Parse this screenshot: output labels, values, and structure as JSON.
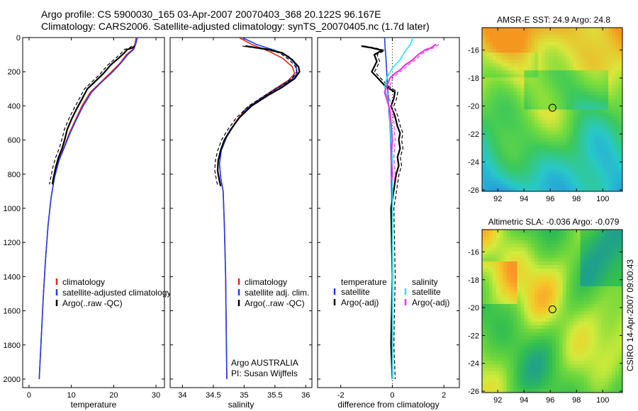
{
  "header": {
    "line1": "Argo profile: CS 5900030_165 03-Apr-2007 20070403_368 20.122S 96.167E",
    "line2": "Climatology: CARS2006. Satellite-adjusted climatology: synTS_20070405.nc (1.7d later)"
  },
  "colors": {
    "climatology": "#e8261c",
    "satellite": "#1f3ee8",
    "argo": "#000000",
    "sal_satellite": "#22e6ee",
    "sal_argo": "#e63bd8"
  },
  "chart_data": [
    {
      "type": "line",
      "xlabel": "temperature",
      "ylabel": "",
      "xlim": [
        -1.5,
        32
      ],
      "ylim": [
        2050,
        0
      ],
      "xticks": [
        0,
        10,
        20,
        30
      ],
      "yticks": [
        0,
        200,
        400,
        600,
        800,
        1000,
        1200,
        1400,
        1600,
        1800,
        2000
      ],
      "legend": [
        "climatology",
        "satellite-adjusted climatology",
        "Argo(..raw -QC)"
      ],
      "series": [
        {
          "name": "climatology",
          "color": "climatology",
          "points": [
            [
              25.3,
              0
            ],
            [
              25.0,
              40
            ],
            [
              24.5,
              70
            ],
            [
              23.0,
              100
            ],
            [
              21.5,
              150
            ],
            [
              19.5,
              200
            ],
            [
              17.0,
              260
            ],
            [
              14.5,
              320
            ],
            [
              12.5,
              400
            ],
            [
              11.0,
              480
            ],
            [
              9.5,
              560
            ],
            [
              8.3,
              640
            ],
            [
              7.0,
              720
            ],
            [
              6.0,
              820
            ],
            [
              5.2,
              940
            ],
            [
              4.5,
              1100
            ],
            [
              3.9,
              1300
            ],
            [
              3.4,
              1500
            ],
            [
              3.0,
              1700
            ],
            [
              2.6,
              1900
            ],
            [
              2.4,
              2000
            ]
          ]
        },
        {
          "name": "satellite-adjusted climatology",
          "color": "satellite",
          "points": [
            [
              25.6,
              0
            ],
            [
              25.2,
              40
            ],
            [
              24.7,
              70
            ],
            [
              23.3,
              100
            ],
            [
              21.7,
              150
            ],
            [
              19.8,
              200
            ],
            [
              17.2,
              260
            ],
            [
              14.8,
              320
            ],
            [
              12.8,
              400
            ],
            [
              11.2,
              480
            ],
            [
              9.7,
              560
            ],
            [
              8.4,
              640
            ],
            [
              7.1,
              720
            ],
            [
              6.0,
              820
            ],
            [
              5.2,
              940
            ],
            [
              4.5,
              1100
            ],
            [
              3.9,
              1300
            ],
            [
              3.4,
              1500
            ],
            [
              3.0,
              1700
            ],
            [
              2.6,
              1900
            ],
            [
              2.4,
              2000
            ]
          ]
        },
        {
          "name": "Argo(..raw -QC)",
          "color": "argo",
          "points": [
            [
              25.0,
              50
            ],
            [
              24.4,
              60
            ],
            [
              23.2,
              70
            ],
            [
              22.5,
              90
            ],
            [
              21.2,
              120
            ],
            [
              19.3,
              160
            ],
            [
              17.6,
              210
            ],
            [
              15.5,
              260
            ],
            [
              13.8,
              300
            ],
            [
              12.5,
              360
            ],
            [
              11.2,
              420
            ],
            [
              10.0,
              480
            ],
            [
              9.0,
              540
            ],
            [
              8.4,
              600
            ],
            [
              7.8,
              650
            ],
            [
              7.0,
              700
            ],
            [
              6.3,
              760
            ],
            [
              5.8,
              820
            ],
            [
              5.5,
              860
            ]
          ]
        }
      ]
    },
    {
      "type": "line",
      "xlabel": "salinity",
      "ylabel": "",
      "xlim": [
        33.8,
        36.1
      ],
      "ylim": [
        2050,
        0
      ],
      "xticks": [
        34,
        34.5,
        35,
        35.5,
        36
      ],
      "yticks": [
        0,
        200,
        400,
        600,
        800,
        1000,
        1200,
        1400,
        1600,
        1800,
        2000
      ],
      "legend": [
        "climatology",
        "satellite adj. clim.",
        "Argo(..raw -QC)"
      ],
      "annotations": [
        "Argo AUSTRALIA",
        "PI: Susan Wijffels"
      ],
      "series": [
        {
          "name": "climatology",
          "color": "climatology",
          "points": [
            [
              34.92,
              0
            ],
            [
              35.12,
              40
            ],
            [
              35.4,
              80
            ],
            [
              35.62,
              120
            ],
            [
              35.78,
              170
            ],
            [
              35.82,
              210
            ],
            [
              35.72,
              250
            ],
            [
              35.5,
              300
            ],
            [
              35.25,
              360
            ],
            [
              35.02,
              420
            ],
            [
              34.85,
              500
            ],
            [
              34.72,
              580
            ],
            [
              34.63,
              660
            ],
            [
              34.6,
              740
            ],
            [
              34.62,
              820
            ],
            [
              34.66,
              900
            ],
            [
              34.68,
              1100
            ],
            [
              34.7,
              1400
            ],
            [
              34.71,
              1700
            ],
            [
              34.72,
              2000
            ]
          ]
        },
        {
          "name": "satellite adj. clim.",
          "color": "satellite",
          "points": [
            [
              34.97,
              0
            ],
            [
              35.2,
              40
            ],
            [
              35.5,
              75
            ],
            [
              35.72,
              110
            ],
            [
              35.84,
              160
            ],
            [
              35.86,
              210
            ],
            [
              35.76,
              250
            ],
            [
              35.52,
              300
            ],
            [
              35.26,
              360
            ],
            [
              35.03,
              420
            ],
            [
              34.86,
              500
            ],
            [
              34.72,
              580
            ],
            [
              34.63,
              660
            ],
            [
              34.6,
              740
            ],
            [
              34.62,
              820
            ],
            [
              34.66,
              900
            ],
            [
              34.68,
              1100
            ],
            [
              34.7,
              1400
            ],
            [
              34.71,
              1700
            ],
            [
              34.72,
              2000
            ]
          ]
        },
        {
          "name": "Argo(..raw -QC)",
          "color": "argo",
          "points": [
            [
              35.02,
              50
            ],
            [
              35.4,
              70
            ],
            [
              35.62,
              90
            ],
            [
              35.78,
              130
            ],
            [
              35.88,
              170
            ],
            [
              35.9,
              200
            ],
            [
              35.82,
              240
            ],
            [
              35.62,
              290
            ],
            [
              35.38,
              340
            ],
            [
              35.12,
              400
            ],
            [
              34.92,
              470
            ],
            [
              34.78,
              540
            ],
            [
              34.68,
              600
            ],
            [
              34.62,
              660
            ],
            [
              34.58,
              720
            ],
            [
              34.57,
              780
            ],
            [
              34.6,
              840
            ],
            [
              34.62,
              870
            ]
          ]
        }
      ]
    },
    {
      "type": "line",
      "xlabel": "difference from climatology",
      "ylabel": "",
      "xlim": [
        -2.9,
        2.6
      ],
      "ylim": [
        2050,
        0
      ],
      "xticks": [
        -2,
        0,
        2
      ],
      "yticks": [
        0,
        200,
        400,
        600,
        800,
        1000,
        1200,
        1400,
        1600,
        1800,
        2000
      ],
      "legend_groups": [
        {
          "title": "temperature",
          "items": [
            "satellite",
            "Argo(-adj)"
          ]
        },
        {
          "title": "salinity",
          "items": [
            "satellite",
            "Argo(-adj)"
          ]
        }
      ],
      "series": [
        {
          "name": "temperature satellite",
          "color": "satellite",
          "points": [
            [
              -0.3,
              0
            ],
            [
              -0.28,
              60
            ],
            [
              -0.25,
              120
            ],
            [
              -0.22,
              200
            ],
            [
              -0.18,
              300
            ],
            [
              -0.14,
              400
            ],
            [
              -0.1,
              500
            ],
            [
              -0.06,
              620
            ],
            [
              -0.04,
              800
            ],
            [
              -0.02,
              1000
            ],
            [
              0.0,
              1400
            ],
            [
              0.0,
              2000
            ]
          ]
        },
        {
          "name": "temperature Argo(-adj)",
          "color": "argo",
          "points": [
            [
              -1.2,
              50
            ],
            [
              -0.8,
              60
            ],
            [
              -0.4,
              75
            ],
            [
              -0.7,
              100
            ],
            [
              -0.6,
              140
            ],
            [
              -0.7,
              170
            ],
            [
              -0.8,
              200
            ],
            [
              -0.55,
              240
            ],
            [
              -0.3,
              280
            ],
            [
              0.1,
              320
            ],
            [
              0.05,
              360
            ],
            [
              -0.05,
              400
            ],
            [
              0.1,
              460
            ],
            [
              0.2,
              520
            ],
            [
              0.3,
              560
            ],
            [
              0.25,
              600
            ],
            [
              0.3,
              650
            ],
            [
              0.2,
              700
            ],
            [
              0.25,
              750
            ],
            [
              0.15,
              800
            ],
            [
              0.1,
              850
            ],
            [
              0.05,
              900
            ],
            [
              -0.05,
              1000
            ],
            [
              0.0,
              1400
            ],
            [
              -0.05,
              1800
            ],
            [
              0.0,
              2000
            ]
          ]
        },
        {
          "name": "salinity satellite",
          "color": "sal_satellite",
          "points": [
            [
              0.8,
              0
            ],
            [
              0.7,
              40
            ],
            [
              0.5,
              80
            ],
            [
              0.3,
              130
            ],
            [
              0.0,
              180
            ],
            [
              -0.2,
              230
            ],
            [
              -0.3,
              290
            ],
            [
              -0.2,
              350
            ],
            [
              -0.1,
              420
            ],
            [
              -0.1,
              500
            ],
            [
              -0.05,
              600
            ],
            [
              0.0,
              700
            ],
            [
              0.0,
              800
            ],
            [
              0.0,
              1000
            ],
            [
              0.0,
              1400
            ],
            [
              0.0,
              2000
            ]
          ]
        },
        {
          "name": "salinity Argo(-adj)",
          "color": "sal_argo",
          "points": [
            [
              1.7,
              40
            ],
            [
              1.5,
              60
            ],
            [
              1.3,
              70
            ],
            [
              1.0,
              100
            ],
            [
              0.8,
              130
            ],
            [
              0.5,
              160
            ],
            [
              0.3,
              190
            ],
            [
              0.1,
              210
            ],
            [
              -0.1,
              240
            ],
            [
              -0.2,
              280
            ],
            [
              -0.3,
              320
            ],
            [
              -0.2,
              370
            ],
            [
              -0.1,
              420
            ],
            [
              -0.05,
              500
            ],
            [
              0.0,
              600
            ],
            [
              -0.05,
              700
            ],
            [
              0.0,
              800
            ],
            [
              -0.05,
              850
            ]
          ]
        }
      ]
    },
    {
      "type": "heatmap",
      "title": "AMSR-E SST: 24.9 Argo: 24.8",
      "xlim": [
        90.8,
        101.5
      ],
      "ylim": [
        -26.1,
        -14.4
      ],
      "xticks": [
        92,
        94,
        96,
        98,
        100
      ],
      "yticks": [
        -16,
        -18,
        -20,
        -22,
        -24,
        -26
      ],
      "marker": [
        96.167,
        -20.122
      ]
    },
    {
      "type": "heatmap",
      "title": "Altimetric SLA: -0.036 Argo: -0.079",
      "xlim": [
        90.8,
        101.5
      ],
      "ylim": [
        -26.1,
        -14.4
      ],
      "xticks": [
        92,
        94,
        96,
        98,
        100
      ],
      "yticks": [
        -16,
        -18,
        -20,
        -22,
        -24,
        -26
      ],
      "marker": [
        96.167,
        -20.122
      ],
      "annotation": "CSIRO 14-Apr-2007 09:00:43"
    }
  ]
}
